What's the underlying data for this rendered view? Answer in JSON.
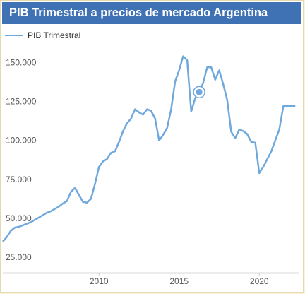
{
  "chart_data": {
    "type": "line",
    "title": "PIB Trimestral a precios de mercado Argentina",
    "series": [
      {
        "name": "PIB Trimestral",
        "color": "#6fa8dc",
        "x": [
          2004.0,
          2004.25,
          2004.5,
          2004.75,
          2005.0,
          2005.25,
          2005.5,
          2005.75,
          2006.0,
          2006.25,
          2006.5,
          2006.75,
          2007.0,
          2007.25,
          2007.5,
          2007.75,
          2008.0,
          2008.25,
          2008.5,
          2008.75,
          2009.0,
          2009.25,
          2009.5,
          2009.75,
          2010.0,
          2010.25,
          2010.5,
          2010.75,
          2011.0,
          2011.25,
          2011.5,
          2011.75,
          2012.0,
          2012.25,
          2012.5,
          2012.75,
          2013.0,
          2013.25,
          2013.5,
          2013.75,
          2014.0,
          2014.25,
          2014.5,
          2014.75,
          2015.0,
          2015.25,
          2015.5,
          2015.75,
          2016.0,
          2016.25,
          2016.5,
          2016.75,
          2017.0,
          2017.25,
          2017.5,
          2017.75,
          2018.0,
          2018.25,
          2018.5,
          2018.75,
          2019.0,
          2019.25,
          2019.5,
          2019.75,
          2020.0,
          2020.25,
          2020.5,
          2020.75,
          2021.0,
          2021.25,
          2021.5,
          2021.75,
          2022.0,
          2022.25
        ],
        "values": [
          35000,
          38000,
          42000,
          44000,
          44500,
          45500,
          46500,
          47500,
          49000,
          50500,
          52000,
          53500,
          54500,
          56000,
          57500,
          59500,
          61000,
          67000,
          69500,
          65000,
          60500,
          60000,
          62500,
          72000,
          83000,
          86500,
          88000,
          92000,
          93000,
          99000,
          106000,
          111000,
          114000,
          120000,
          118000,
          116500,
          120000,
          119000,
          114000,
          100000,
          103500,
          108000,
          120000,
          138000,
          145000,
          154000,
          151500,
          118500,
          127000,
          131000,
          137000,
          147000,
          147000,
          139000,
          145000,
          136000,
          126000,
          105500,
          101500,
          107000,
          106000,
          104000,
          99000,
          98500,
          79000,
          83000,
          88000,
          93000,
          100000,
          107000,
          122000,
          122000,
          122000,
          122000
        ]
      }
    ],
    "xlim": [
      2004.0,
      2022.5
    ],
    "ylim": [
      15000,
      162000
    ],
    "yticks": [
      25000,
      50000,
      75000,
      100000,
      125000,
      150000
    ],
    "ytick_labels": [
      "25.000",
      "50.000",
      "75.000",
      "100.000",
      "125.000",
      "150.000"
    ],
    "xticks": [
      2010,
      2015,
      2020
    ],
    "xtick_labels": [
      "2010",
      "2015",
      "2020"
    ],
    "grid": false,
    "legend_position": "top-left",
    "highlight_index": 49
  }
}
